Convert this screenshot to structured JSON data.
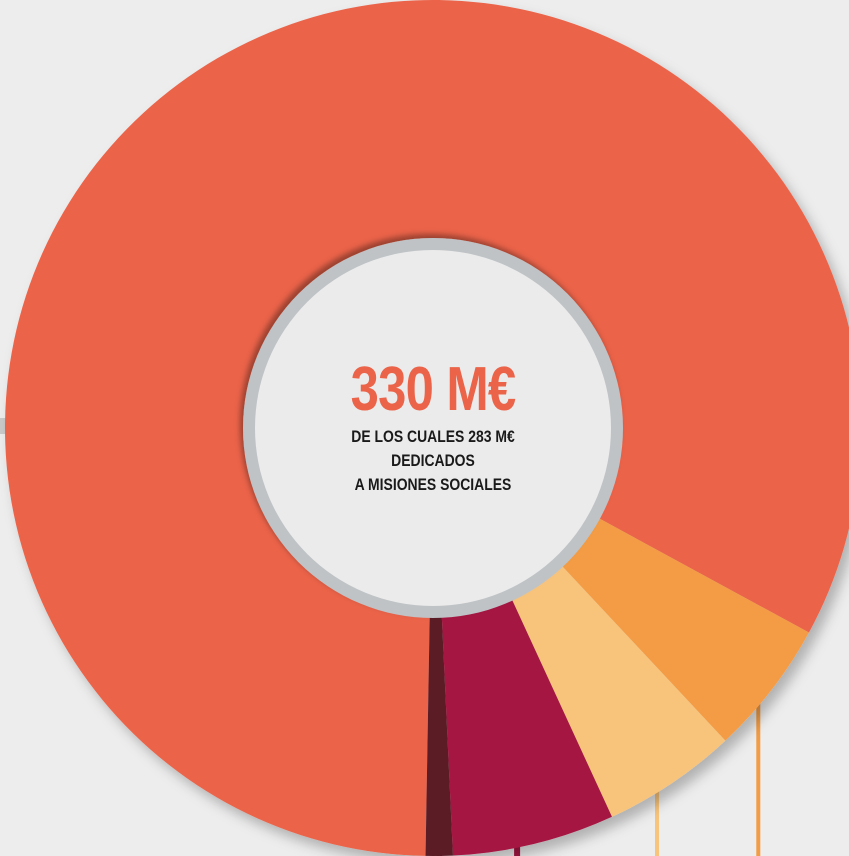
{
  "chart_data": {
    "type": "pie",
    "center_value": "330 M€",
    "center_lines": [
      "DE LOS CUALES 283 M€",
      "DEDICADOS",
      "A MISIONES SOCIALES"
    ],
    "slices": [
      {
        "value": 81.0,
        "color": "#eb644a"
      },
      {
        "value": 5.0,
        "color": "#f39c45"
      },
      {
        "value": 5.0,
        "color": "#f8c47b"
      },
      {
        "value": 6.0,
        "color": "#a51543"
      },
      {
        "value": 1.0,
        "color": "#5b1d27"
      }
    ]
  },
  "colors": {
    "background": "#ededed",
    "center_fill": "#ebebeb",
    "ring": "#bfc3c6",
    "value_text": "#eb644a",
    "label_text": "#1a1a1a"
  }
}
